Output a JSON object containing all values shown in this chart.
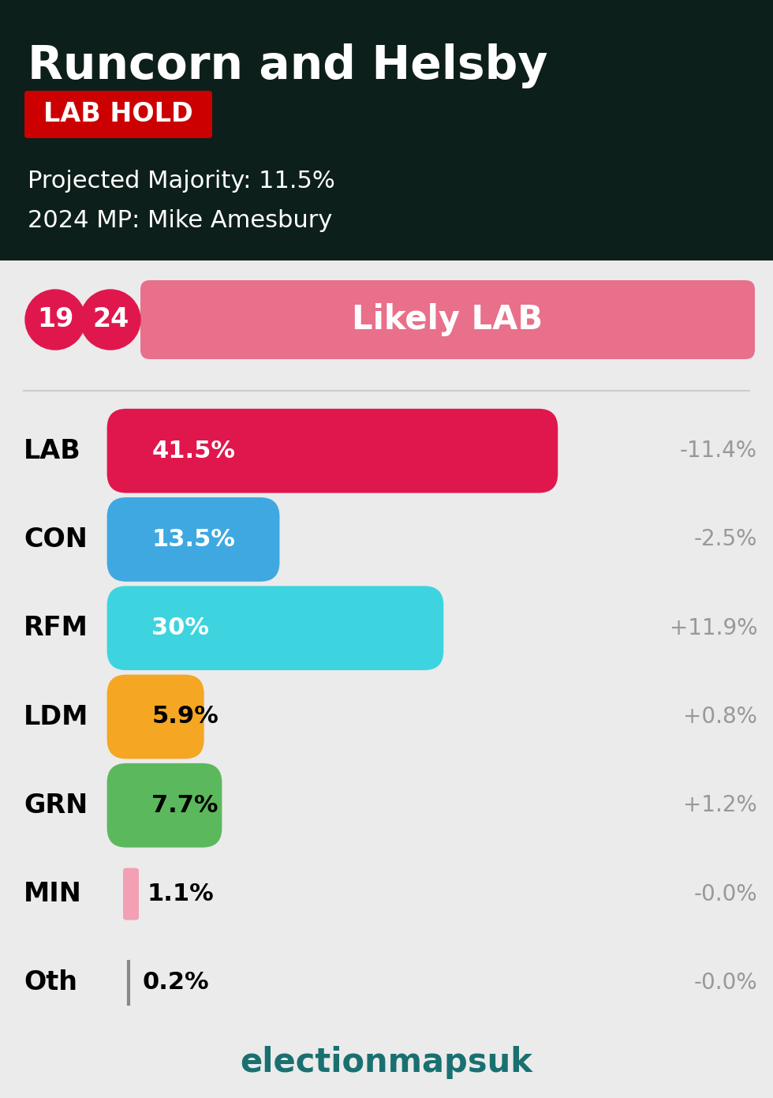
{
  "title": "Runcorn and Helsby",
  "result_label": "LAB HOLD",
  "result_color": "#cc0000",
  "projected_majority": "Projected Majority: 11.5%",
  "mp_2024": "2024 MP: Mike Amesbury",
  "header_bg": "#0d1f1a",
  "body_bg": "#ebebeb",
  "year_labels": [
    "19",
    "24"
  ],
  "year_color": "#e0174d",
  "prediction_label": "Likely LAB",
  "prediction_color": "#e8708a",
  "parties": [
    "LAB",
    "CON",
    "RFM",
    "LDM",
    "GRN",
    "MIN",
    "Oth"
  ],
  "values": [
    41.5,
    13.5,
    30.0,
    5.9,
    7.7,
    1.1,
    0.2
  ],
  "changes": [
    "-11.4%",
    "-2.5%",
    "+11.9%",
    "+0.8%",
    "+1.2%",
    "-0.0%",
    "-0.0%"
  ],
  "bar_colors": [
    "#e0174d",
    "#3fa8e0",
    "#3dd4e0",
    "#f5a623",
    "#5cb85c",
    "#f4a0b4",
    "#999999"
  ],
  "bar_labels": [
    "41.5%",
    "13.5%",
    "30%",
    "5.9%",
    "7.7%",
    "1.1%",
    "0.2%"
  ],
  "max_value": 50,
  "footer_text": "electionmapsuk",
  "footer_color": "#1a7070"
}
